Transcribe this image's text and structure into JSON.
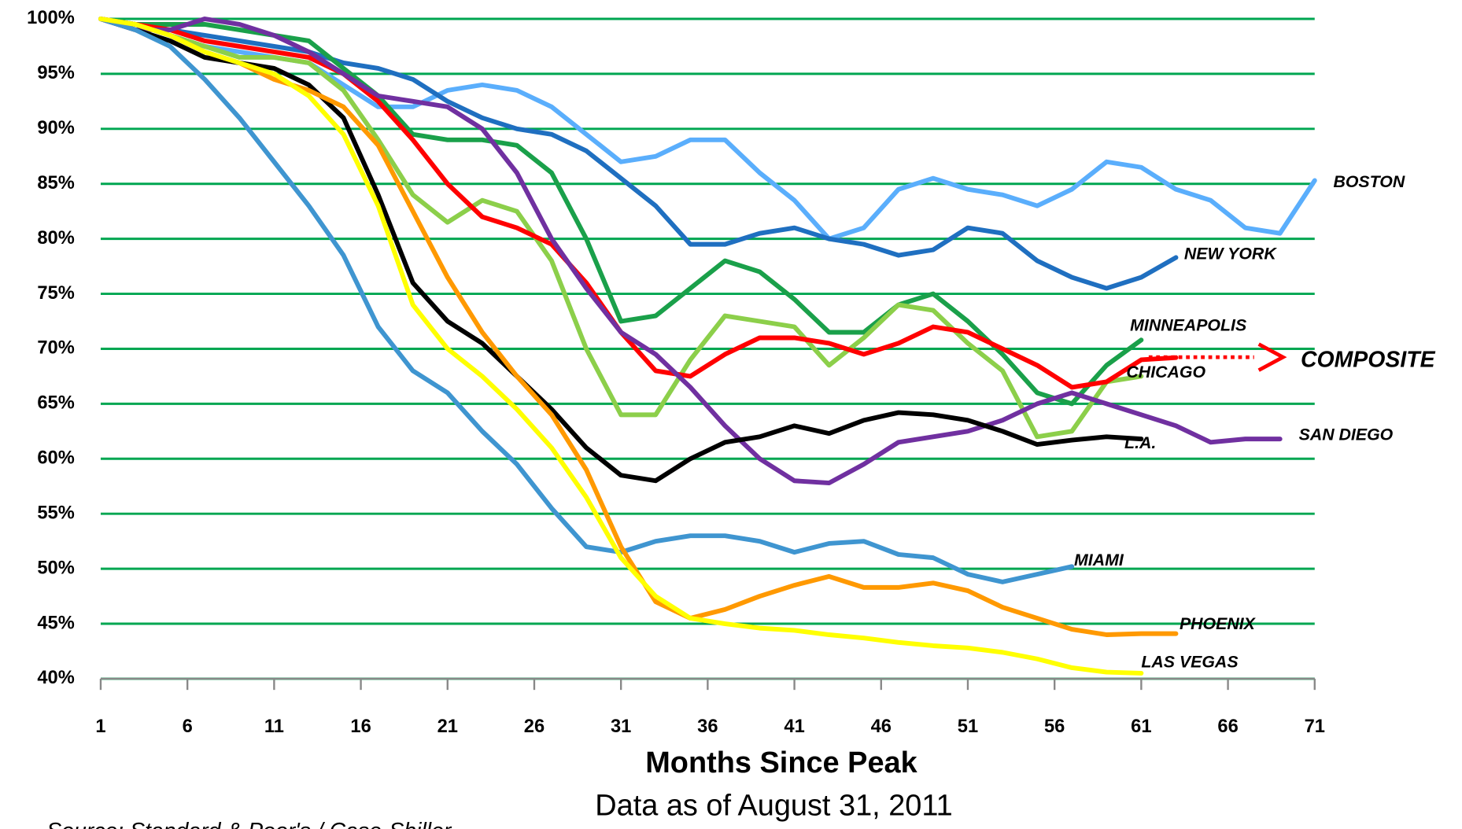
{
  "chart_data": {
    "type": "line",
    "xlabel": "Months Since Peak",
    "subtitle": "Data as of August 31, 2011",
    "source": "Source: Standard & Poor's / Case-Shiller",
    "grid": true,
    "grid_color": "#00a651",
    "x": [
      1,
      3,
      5,
      7,
      9,
      11,
      13,
      15,
      17,
      19,
      21,
      23,
      25,
      27,
      29,
      31,
      33,
      35,
      37,
      39,
      41,
      43,
      45,
      47,
      49,
      51,
      53,
      55,
      57,
      59,
      61,
      63,
      65,
      67,
      69,
      71
    ],
    "xlim": [
      1,
      71
    ],
    "xticks": [
      1,
      6,
      11,
      16,
      21,
      26,
      31,
      36,
      41,
      46,
      51,
      56,
      61,
      66,
      71
    ],
    "ylim": [
      40,
      100
    ],
    "yticks": [
      {
        "value": 40,
        "label": "40%"
      },
      {
        "value": 45,
        "label": "45%"
      },
      {
        "value": 50,
        "label": "50%"
      },
      {
        "value": 55,
        "label": "55%"
      },
      {
        "value": 60,
        "label": "60%"
      },
      {
        "value": 65,
        "label": "65%"
      },
      {
        "value": 70,
        "label": "70%"
      },
      {
        "value": 75,
        "label": "75%"
      },
      {
        "value": 80,
        "label": "80%"
      },
      {
        "value": 85,
        "label": "85%"
      },
      {
        "value": 90,
        "label": "90%"
      },
      {
        "value": 95,
        "label": "95%"
      },
      {
        "value": 100,
        "label": "100%"
      }
    ],
    "series": [
      {
        "name": "BOSTON",
        "color": "#5aaefc",
        "values": [
          100,
          99.5,
          98.5,
          97.5,
          97,
          96.5,
          96,
          94,
          92,
          92,
          93.5,
          94,
          93.5,
          92,
          89.5,
          87,
          87.5,
          89,
          89,
          86,
          83.5,
          80,
          81,
          84.5,
          85.5,
          84.5,
          84,
          83,
          84.5,
          87,
          86.5,
          84.5,
          83.5,
          81,
          80.5,
          85.3
        ]
      },
      {
        "name": "NEW YORK",
        "color": "#1f6fc0",
        "values": [
          100,
          99.5,
          99,
          98.5,
          98,
          97.5,
          97,
          96,
          95.5,
          94.5,
          92.5,
          91,
          90,
          89.5,
          88,
          85.5,
          83,
          79.5,
          79.5,
          80.5,
          81,
          80,
          79.5,
          78.5,
          79,
          81,
          80.5,
          78,
          76.5,
          75.5,
          76.5,
          78.3,
          null,
          null,
          null,
          null
        ]
      },
      {
        "name": "MINNEAPOLIS",
        "color": "#1aa04a",
        "values": [
          100,
          99.5,
          99.5,
          99.5,
          99,
          98.5,
          98,
          95.5,
          93,
          89.5,
          89,
          89,
          88.5,
          86,
          80,
          72.5,
          73,
          75.5,
          78,
          77,
          74.5,
          71.5,
          71.5,
          74,
          75,
          72.5,
          69.5,
          66,
          65,
          68.5,
          70.8,
          null,
          null,
          null,
          null,
          null
        ]
      },
      {
        "name": "CHICAGO",
        "color": "#8ccf4a",
        "values": [
          100,
          99.5,
          98.5,
          97.5,
          96.5,
          96.5,
          96,
          93.5,
          89,
          84,
          81.5,
          83.5,
          82.5,
          78,
          70,
          64,
          64,
          69,
          73,
          72.5,
          72,
          68.5,
          71,
          74,
          73.5,
          70.5,
          68,
          62,
          62.5,
          67,
          67.5,
          null,
          null,
          null,
          null,
          null
        ]
      },
      {
        "name": "COMPOSITE",
        "color": "#ff0000",
        "values": [
          100,
          99.5,
          99,
          98,
          97.5,
          97,
          96.5,
          95,
          92.5,
          89,
          85,
          82,
          81,
          79.5,
          76,
          71.5,
          68,
          67.5,
          69.5,
          71,
          71,
          70.5,
          69.5,
          70.5,
          72,
          71.5,
          70,
          68.5,
          66.5,
          67,
          69,
          69.2,
          null,
          null,
          null,
          null
        ]
      },
      {
        "name": "SAN DIEGO",
        "color": "#7030a0",
        "values": [
          100,
          99,
          99,
          100,
          99.5,
          98.5,
          97,
          95,
          93,
          92.5,
          92,
          90,
          86,
          80,
          75.5,
          71.5,
          69.5,
          66.5,
          63,
          60,
          58,
          57.8,
          59.5,
          61.5,
          62,
          62.5,
          63.5,
          65,
          66,
          65,
          64,
          63,
          61.5,
          61.8,
          61.8,
          null
        ]
      },
      {
        "name": "L.A.",
        "color": "#000000",
        "values": [
          100,
          99,
          98,
          96.5,
          96,
          95.5,
          94,
          91,
          84,
          76,
          72.5,
          70.5,
          67.5,
          64.5,
          61,
          58.5,
          58,
          60,
          61.5,
          62,
          63,
          62.3,
          63.5,
          64.2,
          64,
          63.5,
          62.5,
          61.3,
          61.7,
          62,
          61.8,
          null,
          null,
          null,
          null,
          null
        ]
      },
      {
        "name": "MIAMI",
        "color": "#3f95d0",
        "values": [
          100,
          99,
          97.5,
          94.5,
          91,
          87,
          83,
          78.5,
          72,
          68,
          66,
          62.5,
          59.5,
          55.5,
          52,
          51.5,
          52.5,
          53,
          53,
          52.5,
          51.5,
          52.3,
          52.5,
          51.3,
          51,
          49.5,
          48.8,
          49.5,
          50.2,
          null,
          null,
          null,
          null,
          null,
          null,
          null
        ]
      },
      {
        "name": "PHOENIX",
        "color": "#ff9900",
        "values": [
          100,
          99.5,
          98.5,
          97,
          96,
          94.5,
          93.5,
          92,
          88.5,
          82.5,
          76.5,
          71.5,
          67.5,
          64,
          59,
          52,
          47,
          45.5,
          46.3,
          47.5,
          48.5,
          49.3,
          48.3,
          48.3,
          48.7,
          48,
          46.5,
          45.5,
          44.5,
          44,
          44.1,
          44.1,
          null,
          null,
          null,
          null
        ]
      },
      {
        "name": "LAS VEGAS",
        "color": "#ffff00",
        "values": [
          100,
          99.5,
          98.5,
          97,
          96,
          95,
          93,
          89.5,
          83,
          74,
          70,
          67.5,
          64.5,
          61,
          56.5,
          51,
          47.5,
          45.5,
          45,
          44.6,
          44.4,
          44,
          43.7,
          43.3,
          43,
          42.8,
          42.4,
          41.8,
          41,
          40.6,
          40.5,
          null,
          null,
          null,
          null,
          null
        ]
      }
    ]
  }
}
